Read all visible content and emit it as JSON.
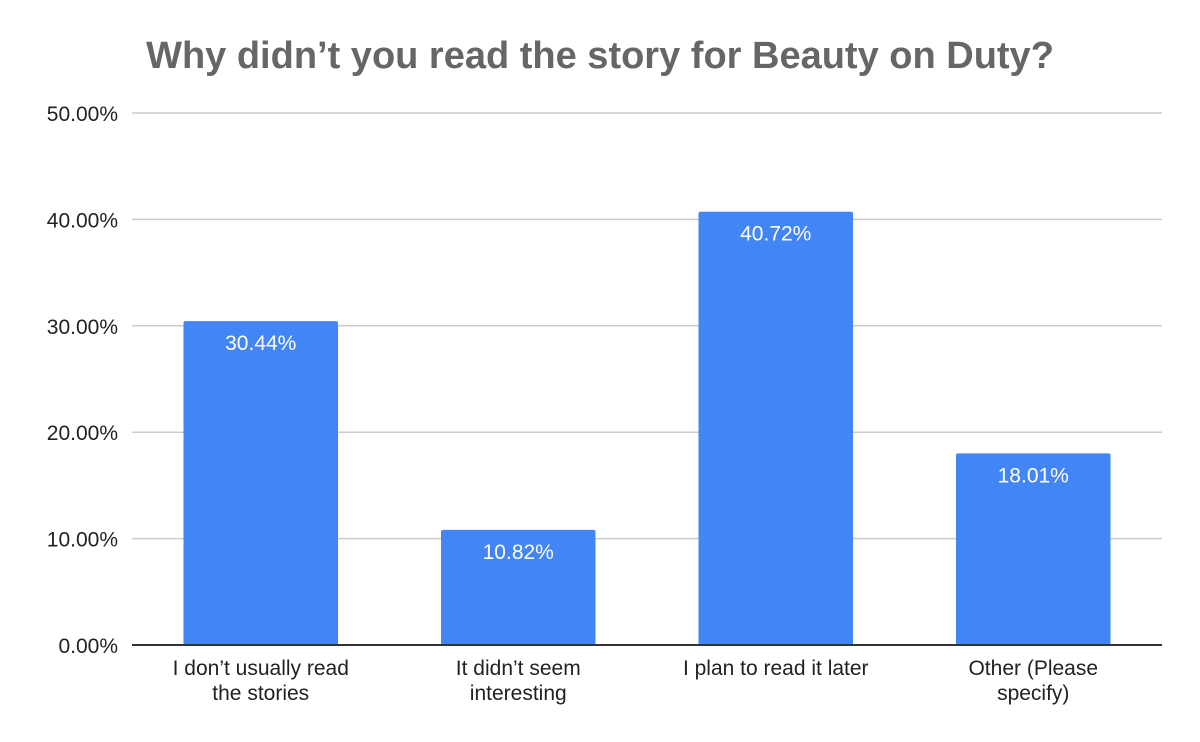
{
  "chart_data": {
    "type": "bar",
    "title": "Why didn’t you read the story for Beauty on Duty?",
    "xlabel": "",
    "ylabel": "",
    "categories": [
      [
        "I don’t usually read",
        "the stories"
      ],
      [
        "It didn’t seem",
        "interesting"
      ],
      [
        "I plan to read it later"
      ],
      [
        "Other (Please",
        "specify)"
      ]
    ],
    "values": [
      30.44,
      10.82,
      40.72,
      18.01
    ],
    "data_labels": [
      "30.44%",
      "10.82%",
      "40.72%",
      "18.01%"
    ],
    "ylim": [
      0,
      50
    ],
    "yticks": [
      0,
      10,
      20,
      30,
      40,
      50
    ],
    "ytick_labels": [
      "0.00%",
      "10.00%",
      "20.00%",
      "30.00%",
      "40.00%",
      "50.00%"
    ],
    "grid": true,
    "legend": "none",
    "bar_color": "#4285f4"
  }
}
